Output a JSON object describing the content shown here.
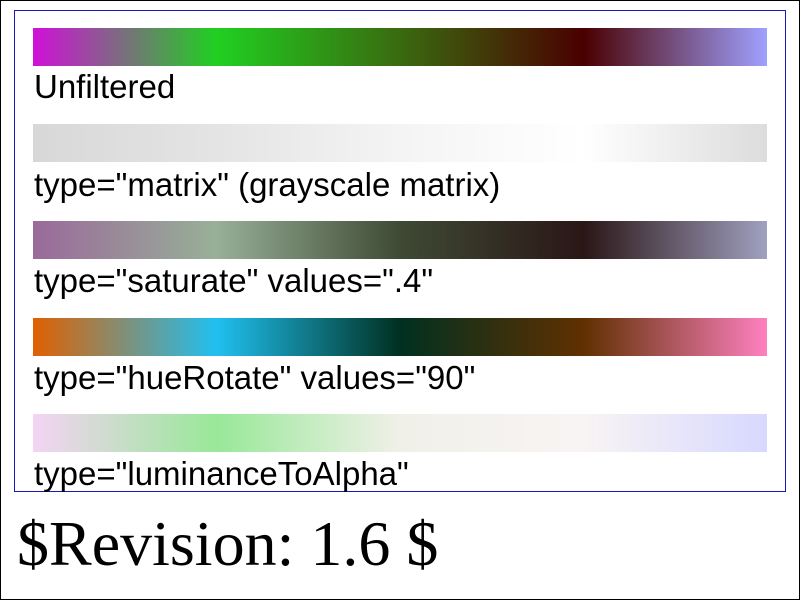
{
  "tests": [
    {
      "label": "Unfiltered",
      "gradient": [
        "#d010d8",
        "#20d020",
        "#3a6a10",
        "#4a0000",
        "#a0a0ff"
      ]
    },
    {
      "label": "type=\"matrix\" (grayscale matrix)",
      "gradient": [
        "#d8d8d8",
        "#e4e4e4",
        "#f4f4f4",
        "#ffffff",
        "#dcdcdc"
      ]
    },
    {
      "label": "type=\"saturate\" values=\".4\"",
      "gradient": [
        "#9a6a9a",
        "#98b098",
        "#3e4a34",
        "#2a1616",
        "#a0a0c0"
      ]
    },
    {
      "label": "type=\"hueRotate\" values=\"90\"",
      "gradient": [
        "#e06000",
        "#20c0f0",
        "#003020",
        "#603000",
        "#ff80c0"
      ]
    },
    {
      "label": "type=\"luminanceToAlpha\"",
      "gradient": [
        "#f4d4f4",
        "#98e898",
        "#f0f0e8",
        "#f8f4f4",
        "#d8d8ff"
      ]
    }
  ],
  "revision": "$Revision: 1.6 $"
}
